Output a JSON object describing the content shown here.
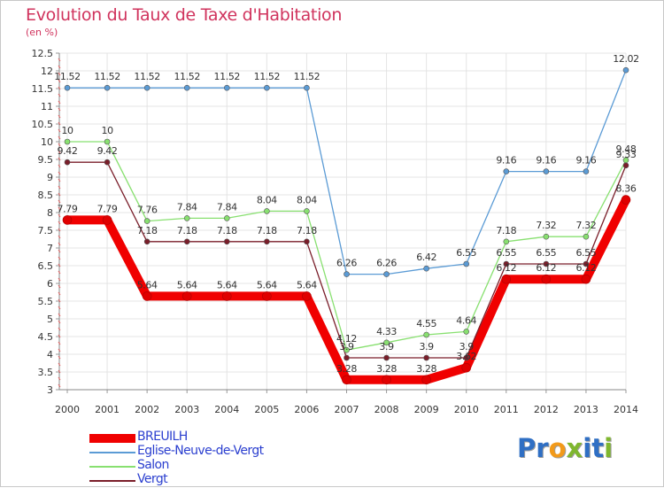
{
  "title": "Evolution du Taux de Taxe d'Habitation",
  "unit": "(en %)",
  "chart_data": {
    "type": "line",
    "x": [
      "2000",
      "2001",
      "2002",
      "2003",
      "2004",
      "2005",
      "2006",
      "2007",
      "2008",
      "2009",
      "2010",
      "2011",
      "2012",
      "2013",
      "2014"
    ],
    "ylim": [
      3,
      12.5
    ],
    "yticks": [
      "3",
      "3.5",
      "4",
      "4.5",
      "5",
      "5.5",
      "6",
      "6.5",
      "7",
      "7.5",
      "8",
      "8.5",
      "9",
      "9.5",
      "10",
      "10.5",
      "11",
      "11.5",
      "12",
      "12.5"
    ],
    "grid": true,
    "legend_position": "bottom-left",
    "series": [
      {
        "name": "BREUILH",
        "color": "#f00000",
        "values": [
          7.79,
          7.79,
          5.64,
          5.64,
          5.64,
          5.64,
          5.64,
          3.28,
          3.28,
          3.28,
          3.62,
          6.12,
          6.12,
          6.12,
          8.36
        ],
        "labels": [
          "7.79",
          "7.79",
          "5.64",
          "5.64",
          "5.64",
          "5.64",
          "5.64",
          "3.28",
          "3.28",
          "3.28",
          "3.62",
          "6.12",
          "6.12",
          "6.12",
          "8.36"
        ]
      },
      {
        "name": "Eglise-Neuve-de-Vergt",
        "color": "#5b9bd5",
        "values": [
          11.52,
          11.52,
          11.52,
          11.52,
          11.52,
          11.52,
          11.52,
          6.26,
          6.26,
          6.42,
          6.55,
          9.16,
          9.16,
          9.16,
          12.02
        ],
        "labels": [
          "11.52",
          "11.52",
          "11.52",
          "11.52",
          "11.52",
          "11.52",
          "11.52",
          "6.26",
          "6.26",
          "6.42",
          "6.55",
          "9.16",
          "9.16",
          "9.16",
          "12.02"
        ]
      },
      {
        "name": "Salon",
        "color": "#88e070",
        "values": [
          10,
          10,
          7.76,
          7.84,
          7.84,
          8.04,
          8.04,
          4.12,
          4.33,
          4.55,
          4.64,
          7.18,
          7.32,
          7.32,
          9.48
        ],
        "labels": [
          "10",
          "10",
          "7.76",
          "7.84",
          "7.84",
          "8.04",
          "8.04",
          "4.12",
          "4.33",
          "4.55",
          "4.64",
          "7.18",
          "7.32",
          "7.32",
          "9.48"
        ]
      },
      {
        "name": "Vergt",
        "color": "#7a1e2a",
        "values": [
          9.42,
          9.42,
          7.18,
          7.18,
          7.18,
          7.18,
          7.18,
          3.9,
          3.9,
          3.9,
          3.9,
          6.55,
          6.55,
          6.55,
          9.33
        ],
        "labels": [
          "9.42",
          "9.42",
          "7.18",
          "7.18",
          "7.18",
          "7.18",
          "7.18",
          "3.9",
          "3.9",
          "3.9",
          "3.9",
          "6.55",
          "6.55",
          "6.55",
          "9.33"
        ]
      }
    ]
  },
  "logo": {
    "letters": [
      {
        "ch": "P",
        "color": "#2f6fc4"
      },
      {
        "ch": "r",
        "color": "#2f6fc4"
      },
      {
        "ch": "o",
        "color": "#f29a1a"
      },
      {
        "ch": "x",
        "color": "#7fb72f"
      },
      {
        "ch": "i",
        "color": "#2f6fc4"
      },
      {
        "ch": "t",
        "color": "#2f6fc4"
      },
      {
        "ch": "i",
        "color": "#7fb72f"
      }
    ]
  }
}
